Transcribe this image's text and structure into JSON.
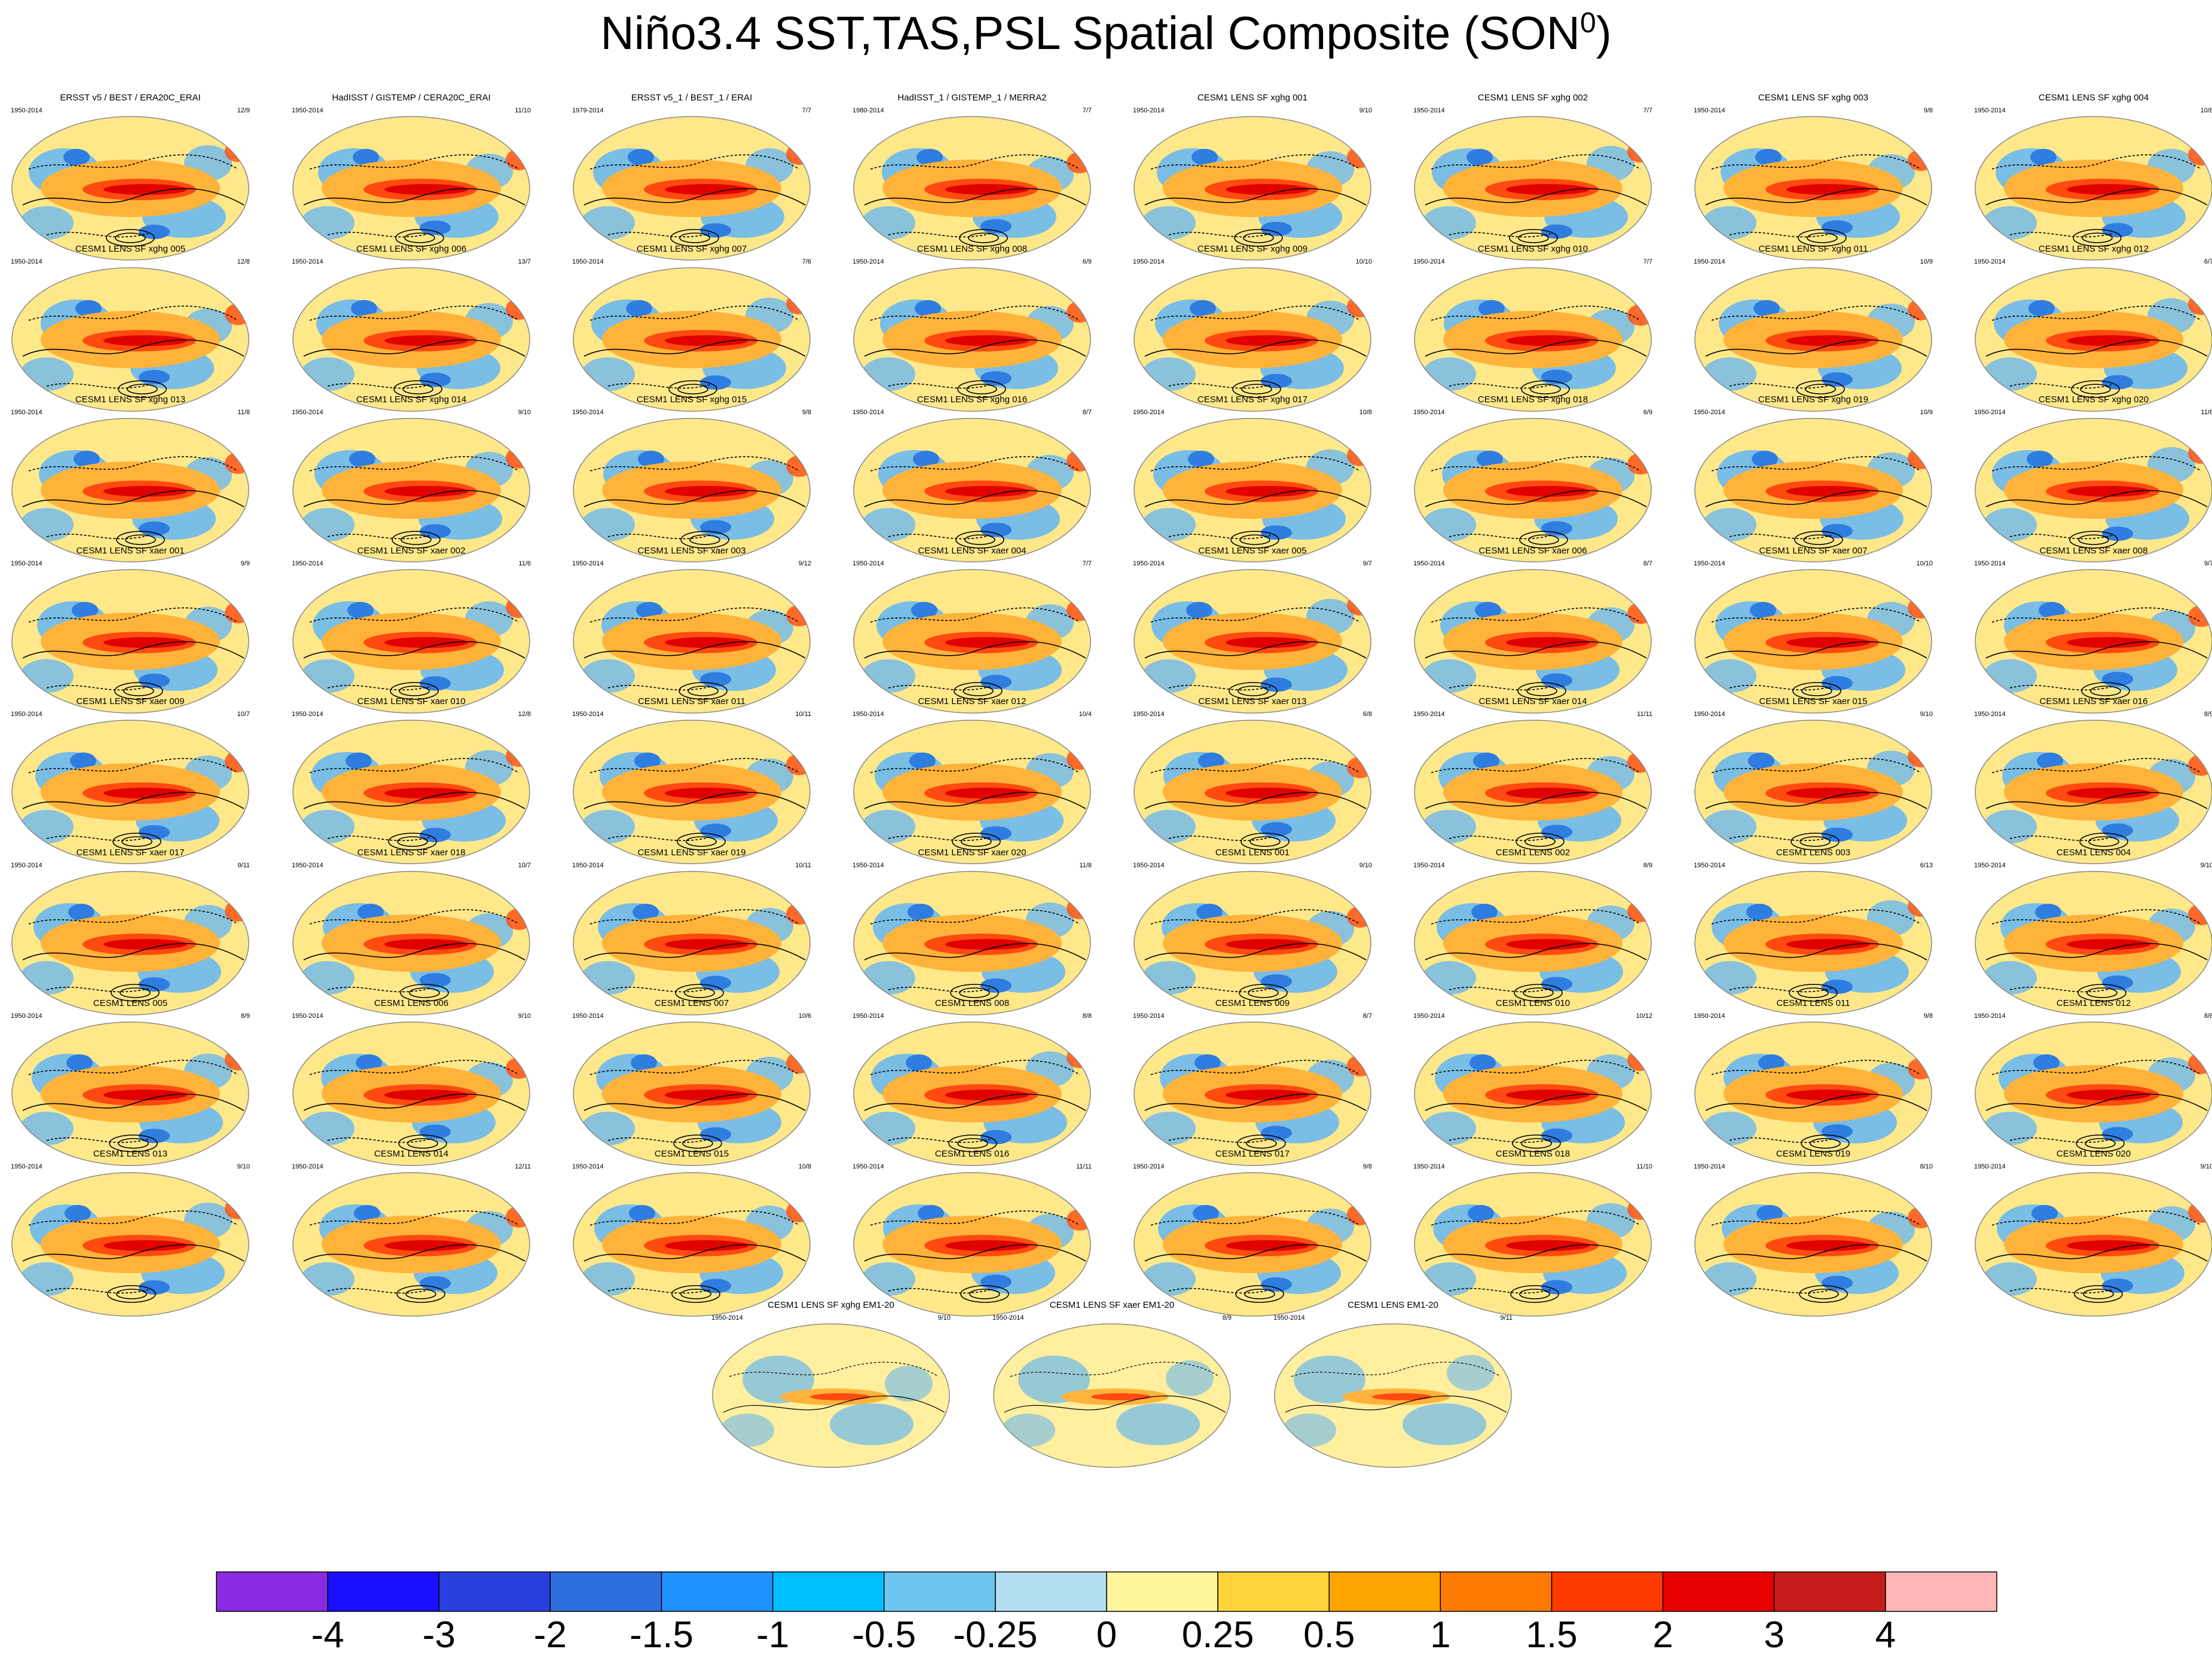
{
  "title": {
    "main": "Niño3.4 SST,TAS,PSL Spatial Composite (SON",
    "sup": "0",
    "close": ")"
  },
  "panels": [
    {
      "title": "ERSST v5 / BEST / ERA20C_ERAI",
      "years": "1950-2014",
      "count": "12/9"
    },
    {
      "title": "HadISST / GISTEMP / CERA20C_ERAI",
      "years": "1950-2014",
      "count": "11/10"
    },
    {
      "title": "ERSST v5_1 / BEST_1 / ERAI",
      "years": "1979-2014",
      "count": "7/7"
    },
    {
      "title": "HadISST_1 / GISTEMP_1 / MERRA2",
      "years": "1980-2014",
      "count": "7/7"
    },
    {
      "title": "CESM1 LENS SF xghg 001",
      "years": "1950-2014",
      "count": "9/10"
    },
    {
      "title": "CESM1 LENS SF xghg 002",
      "years": "1950-2014",
      "count": "7/7"
    },
    {
      "title": "CESM1 LENS SF xghg 003",
      "years": "1950-2014",
      "count": "9/8"
    },
    {
      "title": "CESM1 LENS SF xghg 004",
      "years": "1950-2014",
      "count": "10/8"
    },
    {
      "title": "CESM1 LENS SF xghg 005",
      "years": "1950-2014",
      "count": "12/8"
    },
    {
      "title": "CESM1 LENS SF xghg 006",
      "years": "1950-2014",
      "count": "13/7"
    },
    {
      "title": "CESM1 LENS SF xghg 007",
      "years": "1950-2014",
      "count": "7/6"
    },
    {
      "title": "CESM1 LENS SF xghg 008",
      "years": "1950-2014",
      "count": "6/9"
    },
    {
      "title": "CESM1 LENS SF xghg 009",
      "years": "1950-2014",
      "count": "10/10"
    },
    {
      "title": "CESM1 LENS SF xghg 010",
      "years": "1950-2014",
      "count": "7/7"
    },
    {
      "title": "CESM1 LENS SF xghg 011",
      "years": "1950-2014",
      "count": "10/9"
    },
    {
      "title": "CESM1 LENS SF xghg 012",
      "years": "1950-2014",
      "count": "6/7"
    },
    {
      "title": "CESM1 LENS SF xghg 013",
      "years": "1950-2014",
      "count": "11/8"
    },
    {
      "title": "CESM1 LENS SF xghg 014",
      "years": "1950-2014",
      "count": "9/10"
    },
    {
      "title": "CESM1 LENS SF xghg 015",
      "years": "1950-2014",
      "count": "9/8"
    },
    {
      "title": "CESM1 LENS SF xghg 016",
      "years": "1950-2014",
      "count": "8/7"
    },
    {
      "title": "CESM1 LENS SF xghg 017",
      "years": "1950-2014",
      "count": "10/8"
    },
    {
      "title": "CESM1 LENS SF xghg 018",
      "years": "1950-2014",
      "count": "6/9"
    },
    {
      "title": "CESM1 LENS SF xghg 019",
      "years": "1950-2014",
      "count": "10/9"
    },
    {
      "title": "CESM1 LENS SF xghg 020",
      "years": "1950-2014",
      "count": "11/8"
    },
    {
      "title": "CESM1 LENS SF xaer 001",
      "years": "1950-2014",
      "count": "9/9"
    },
    {
      "title": "CESM1 LENS SF xaer 002",
      "years": "1950-2014",
      "count": "11/6"
    },
    {
      "title": "CESM1 LENS SF xaer 003",
      "years": "1950-2014",
      "count": "9/12"
    },
    {
      "title": "CESM1 LENS SF xaer 004",
      "years": "1950-2014",
      "count": "7/7"
    },
    {
      "title": "CESM1 LENS SF xaer 005",
      "years": "1950-2014",
      "count": "9/7"
    },
    {
      "title": "CESM1 LENS SF xaer 006",
      "years": "1950-2014",
      "count": "8/7"
    },
    {
      "title": "CESM1 LENS SF xaer 007",
      "years": "1950-2014",
      "count": "10/10"
    },
    {
      "title": "CESM1 LENS SF xaer 008",
      "years": "1950-2014",
      "count": "9/7"
    },
    {
      "title": "CESM1 LENS SF xaer 009",
      "years": "1950-2014",
      "count": "10/7"
    },
    {
      "title": "CESM1 LENS SF xaer 010",
      "years": "1950-2014",
      "count": "12/8"
    },
    {
      "title": "CESM1 LENS SF xaer 011",
      "years": "1950-2014",
      "count": "10/11"
    },
    {
      "title": "CESM1 LENS SF xaer 012",
      "years": "1950-2014",
      "count": "10/4"
    },
    {
      "title": "CESM1 LENS SF xaer 013",
      "years": "1950-2014",
      "count": "6/8"
    },
    {
      "title": "CESM1 LENS SF xaer 014",
      "years": "1950-2014",
      "count": "11/11"
    },
    {
      "title": "CESM1 LENS SF xaer 015",
      "years": "1950-2014",
      "count": "9/10"
    },
    {
      "title": "CESM1 LENS SF xaer 016",
      "years": "1950-2014",
      "count": "8/9"
    },
    {
      "title": "CESM1 LENS SF xaer 017",
      "years": "1950-2014",
      "count": "9/11"
    },
    {
      "title": "CESM1 LENS SF xaer 018",
      "years": "1950-2014",
      "count": "10/7"
    },
    {
      "title": "CESM1 LENS SF xaer 019",
      "years": "1950-2014",
      "count": "10/11"
    },
    {
      "title": "CESM1 LENS SF xaer 020",
      "years": "1950-2014",
      "count": "11/8"
    },
    {
      "title": "CESM1 LENS 001",
      "years": "1950-2014",
      "count": "9/10"
    },
    {
      "title": "CESM1 LENS 002",
      "years": "1950-2014",
      "count": "8/9"
    },
    {
      "title": "CESM1 LENS 003",
      "years": "1950-2014",
      "count": "6/13"
    },
    {
      "title": "CESM1 LENS 004",
      "years": "1950-2014",
      "count": "9/10"
    },
    {
      "title": "CESM1 LENS 005",
      "years": "1950-2014",
      "count": "8/9"
    },
    {
      "title": "CESM1 LENS 006",
      "years": "1950-2014",
      "count": "9/10"
    },
    {
      "title": "CESM1 LENS 007",
      "years": "1950-2014",
      "count": "10/6"
    },
    {
      "title": "CESM1 LENS 008",
      "years": "1950-2014",
      "count": "8/8"
    },
    {
      "title": "CESM1 LENS 009",
      "years": "1950-2014",
      "count": "8/7"
    },
    {
      "title": "CESM1 LENS 010",
      "years": "1950-2014",
      "count": "10/12"
    },
    {
      "title": "CESM1 LENS 011",
      "years": "1950-2014",
      "count": "9/8"
    },
    {
      "title": "CESM1 LENS 012",
      "years": "1950-2014",
      "count": "8/6"
    },
    {
      "title": "CESM1 LENS 013",
      "years": "1950-2014",
      "count": "9/10"
    },
    {
      "title": "CESM1 LENS 014",
      "years": "1950-2014",
      "count": "12/11"
    },
    {
      "title": "CESM1 LENS 015",
      "years": "1950-2014",
      "count": "10/8"
    },
    {
      "title": "CESM1 LENS 016",
      "years": "1950-2014",
      "count": "11/11"
    },
    {
      "title": "CESM1 LENS 017",
      "years": "1950-2014",
      "count": "9/8"
    },
    {
      "title": "CESM1 LENS 018",
      "years": "1950-2014",
      "count": "11/10"
    },
    {
      "title": "CESM1 LENS 019",
      "years": "1950-2014",
      "count": "8/10"
    },
    {
      "title": "CESM1 LENS 020",
      "years": "1950-2014",
      "count": "9/10"
    },
    {
      "title": "CESM1 LENS SF xghg EM1-20",
      "years": "1950-2014",
      "count": "9/10"
    },
    {
      "title": "CESM1 LENS SF xaer EM1-20",
      "years": "1950-2014",
      "count": "8/9"
    },
    {
      "title": "CESM1 LENS EM1-20",
      "years": "1950-2014",
      "count": "9/11"
    }
  ],
  "colorbar": {
    "colors": [
      "#8a2be2",
      "#1a10ff",
      "#2a3fe0",
      "#2e6fe0",
      "#1e90ff",
      "#00bfff",
      "#6ec6f0",
      "#b4def2",
      "#fff59a",
      "#ffd33a",
      "#ffa500",
      "#ff7a00",
      "#ff3a00",
      "#e60000",
      "#c81c1c",
      "#ffb6b9"
    ],
    "labels": [
      "-4",
      "-3",
      "-2",
      "-1.5",
      "-1",
      "-0.5",
      "-0.25",
      "0",
      "0.25",
      "0.5",
      "1",
      "1.5",
      "2",
      "3",
      "4"
    ]
  },
  "map_colors": {
    "land": "#ffe88a",
    "ocean_cool": "#6bb8ee",
    "ocean_cold": "#2f7de0",
    "warm": "#ffb33a",
    "hot": "#ff4a10",
    "core": "#e00000",
    "outline": "#888888",
    "contour": "#000000"
  }
}
